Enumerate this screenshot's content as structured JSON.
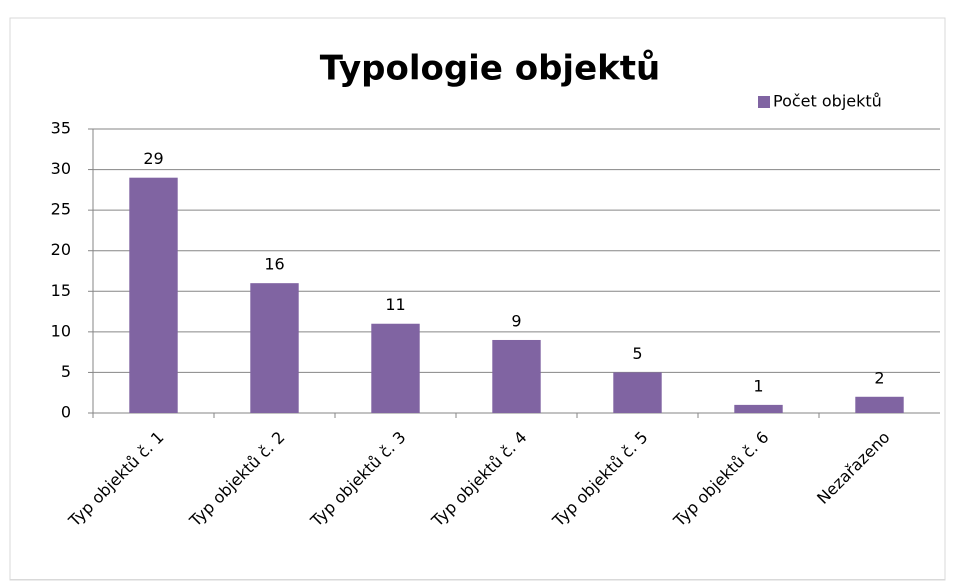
{
  "chart_data": {
    "type": "bar",
    "title": "Typologie objektů",
    "categories": [
      "Typ objektů č. 1",
      "Typ objektů č. 2",
      "Typ objektů č. 3",
      "Typ objektů č. 4",
      "Typ objektů č. 5",
      "Typ objektů č. 6",
      "Nezařazeno"
    ],
    "series": [
      {
        "name": "Počet objektů",
        "color": "#8064a2",
        "values": [
          29,
          16,
          11,
          9,
          5,
          1,
          2
        ]
      }
    ],
    "ylim": [
      0,
      35
    ],
    "yticks": [
      0,
      5,
      10,
      15,
      20,
      25,
      30,
      35
    ],
    "grid": true,
    "legend": "top-right",
    "data_labels": true
  }
}
